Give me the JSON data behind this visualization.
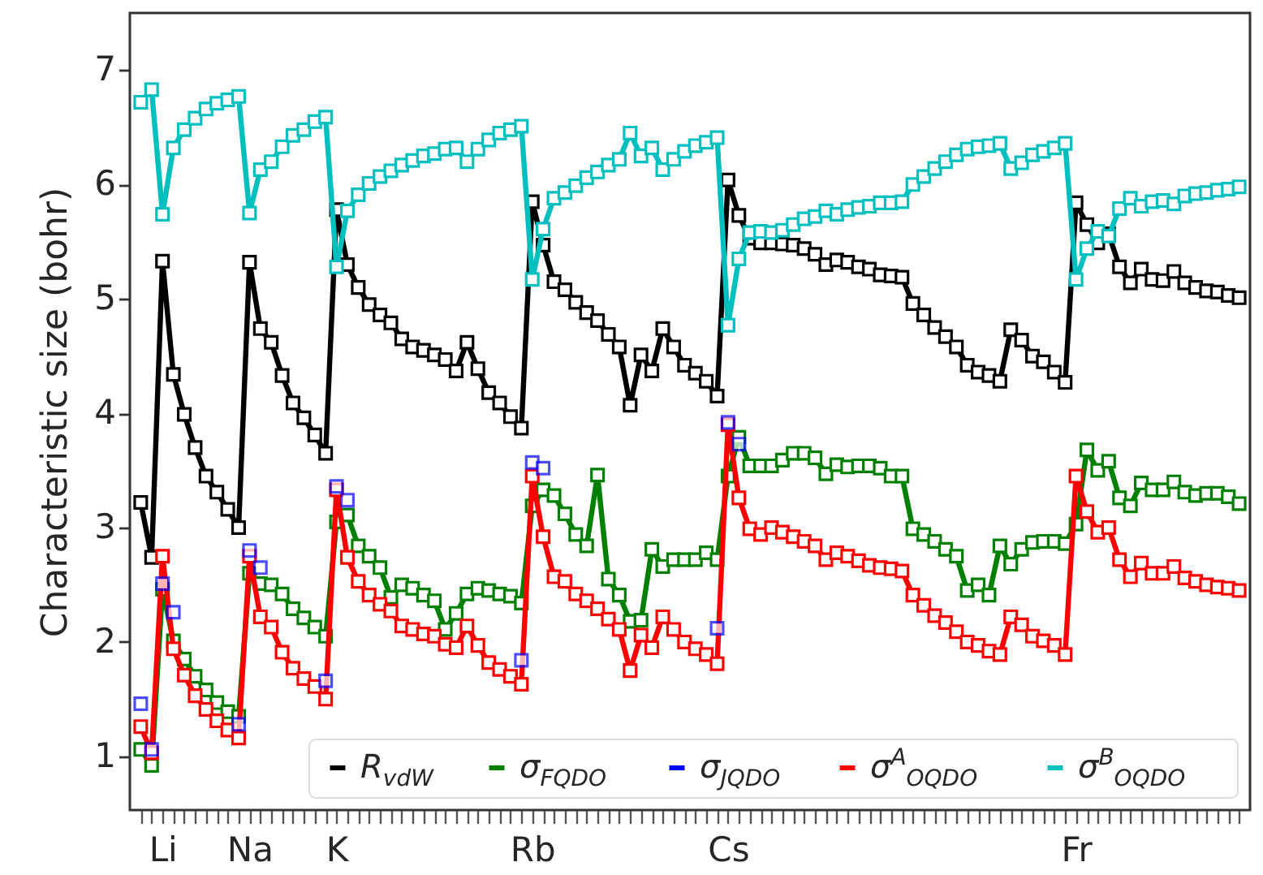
{
  "chart_data": {
    "type": "line",
    "ylabel": "Characteristic size (bohr)",
    "marker": "square",
    "line_style": "solid",
    "legend": "bottom right",
    "categories": [
      null,
      null,
      "Li",
      null,
      null,
      null,
      null,
      null,
      null,
      null,
      "Na",
      null,
      null,
      null,
      null,
      null,
      null,
      null,
      "K",
      null,
      null,
      null,
      null,
      null,
      null,
      null,
      null,
      null,
      null,
      null,
      null,
      null,
      null,
      null,
      null,
      null,
      "Rb",
      null,
      null,
      null,
      null,
      null,
      null,
      null,
      null,
      null,
      null,
      null,
      null,
      null,
      null,
      null,
      null,
      null,
      "Cs",
      null,
      null,
      null,
      null,
      null,
      null,
      null,
      null,
      null,
      null,
      null,
      null,
      null,
      null,
      null,
      null,
      null,
      null,
      null,
      null,
      null,
      null,
      null,
      null,
      null,
      null,
      null,
      null,
      null,
      null,
      null,
      "Fr",
      null,
      null,
      null,
      null,
      null,
      null,
      null,
      null,
      null,
      null,
      null,
      null,
      null,
      null,
      null
    ],
    "ylim": [
      0.53,
      7.5
    ],
    "yticks": [
      1,
      2,
      3,
      4,
      5,
      6,
      7
    ],
    "series": [
      {
        "name": "R$_{vdW}$",
        "color": "#000000",
        "values": [
          3.22,
          2.74,
          5.33,
          4.34,
          3.99,
          3.7,
          3.45,
          3.31,
          3.16,
          3.0,
          5.32,
          4.74,
          4.62,
          4.33,
          4.09,
          3.96,
          3.81,
          3.65,
          5.78,
          5.3,
          5.1,
          4.95,
          4.86,
          4.79,
          4.65,
          4.58,
          4.55,
          4.51,
          4.47,
          4.37,
          4.62,
          4.39,
          4.18,
          4.09,
          3.97,
          3.87,
          5.85,
          5.47,
          5.15,
          5.08,
          4.97,
          4.88,
          4.81,
          4.69,
          4.58,
          4.07,
          4.51,
          4.37,
          4.74,
          4.58,
          4.42,
          4.35,
          4.28,
          4.15,
          6.04,
          5.73,
          5.53,
          5.49,
          5.49,
          5.48,
          5.47,
          5.44,
          5.39,
          5.3,
          5.34,
          5.32,
          5.28,
          5.26,
          5.21,
          5.2,
          5.19,
          4.96,
          4.86,
          4.75,
          4.67,
          4.58,
          4.42,
          4.36,
          4.33,
          4.28,
          4.73,
          4.64,
          4.5,
          4.45,
          4.36,
          4.27,
          5.84,
          5.65,
          5.49,
          5.57,
          5.28,
          5.14,
          5.26,
          5.17,
          5.16,
          5.24,
          5.14,
          5.1,
          5.07,
          5.06,
          5.03,
          5.01
        ]
      },
      {
        "name": "σ$_{FQDO}$",
        "color": "#008000",
        "values": [
          1.06,
          0.92,
          2.46,
          2.01,
          1.85,
          1.7,
          1.58,
          1.47,
          1.39,
          1.35,
          2.6,
          2.51,
          2.5,
          2.42,
          2.29,
          2.21,
          2.13,
          2.05,
          3.05,
          3.11,
          2.84,
          2.75,
          2.65,
          2.39,
          2.5,
          2.47,
          2.41,
          2.36,
          2.11,
          2.25,
          2.42,
          2.47,
          2.45,
          2.42,
          2.4,
          2.34,
          3.19,
          3.33,
          3.28,
          3.12,
          2.94,
          2.84,
          3.46,
          2.55,
          2.41,
          2.18,
          2.19,
          2.81,
          2.66,
          2.72,
          2.72,
          2.72,
          2.78,
          2.72,
          3.45,
          3.79,
          3.54,
          3.54,
          3.54,
          3.59,
          3.65,
          3.65,
          3.61,
          3.47,
          3.55,
          3.53,
          3.54,
          3.54,
          3.52,
          3.45,
          3.45,
          2.99,
          2.94,
          2.88,
          2.81,
          2.75,
          2.45,
          2.5,
          2.41,
          2.84,
          2.68,
          2.81,
          2.87,
          2.88,
          2.88,
          2.86,
          3.03,
          3.68,
          3.5,
          3.58,
          3.26,
          3.19,
          3.39,
          3.33,
          3.33,
          3.4,
          3.31,
          3.28,
          3.3,
          3.3,
          3.27,
          3.21
        ]
      },
      {
        "name": "σ$_{JQDO}$",
        "color": "#0000ff",
        "type": "scatter",
        "values": [
          1.46,
          1.06,
          2.51,
          2.26,
          null,
          null,
          null,
          null,
          null,
          1.28,
          2.8,
          2.65,
          null,
          null,
          null,
          null,
          null,
          1.66,
          3.36,
          3.24,
          null,
          null,
          null,
          null,
          null,
          null,
          null,
          null,
          null,
          null,
          null,
          null,
          null,
          null,
          null,
          1.84,
          3.57,
          3.52,
          null,
          null,
          null,
          null,
          null,
          null,
          null,
          null,
          null,
          null,
          null,
          null,
          null,
          null,
          null,
          2.12,
          3.92,
          3.73,
          null,
          null,
          null,
          null,
          null,
          null,
          null,
          null,
          null,
          null,
          null,
          null,
          null,
          null,
          null,
          null,
          null,
          null,
          null,
          null,
          null,
          null,
          null,
          null,
          null,
          null,
          null,
          null,
          null,
          null,
          null,
          null,
          null,
          null,
          null,
          null,
          null,
          null,
          null,
          null,
          null,
          null,
          null,
          null,
          null,
          null
        ]
      },
      {
        "name": "σ$^{A}$$_{OQDO}$",
        "color": "#ff0000",
        "values": [
          1.26,
          1.03,
          2.75,
          1.94,
          1.71,
          1.53,
          1.41,
          1.31,
          1.23,
          1.16,
          2.75,
          2.22,
          2.13,
          1.91,
          1.77,
          1.68,
          1.61,
          1.5,
          3.33,
          2.74,
          2.53,
          2.41,
          2.33,
          2.27,
          2.14,
          2.11,
          2.07,
          2.05,
          1.98,
          1.95,
          2.14,
          1.97,
          1.82,
          1.76,
          1.7,
          1.63,
          3.45,
          2.92,
          2.57,
          2.53,
          2.42,
          2.36,
          2.29,
          2.2,
          2.11,
          1.75,
          2.06,
          1.95,
          2.22,
          2.11,
          2.0,
          1.94,
          1.89,
          1.81,
          3.9,
          3.26,
          2.99,
          2.94,
          3.0,
          2.96,
          2.92,
          2.88,
          2.84,
          2.72,
          2.78,
          2.75,
          2.71,
          2.67,
          2.65,
          2.64,
          2.62,
          2.41,
          2.32,
          2.23,
          2.17,
          2.09,
          2.0,
          1.97,
          1.92,
          1.89,
          2.22,
          2.15,
          2.05,
          2.01,
          1.97,
          1.89,
          3.45,
          3.14,
          2.96,
          3.0,
          2.72,
          2.57,
          2.69,
          2.6,
          2.6,
          2.66,
          2.56,
          2.53,
          2.5,
          2.48,
          2.47,
          2.45
        ]
      },
      {
        "name": "σ$^{B}$$_{OQDO}$",
        "color": "#00bfbf",
        "values": [
          6.72,
          6.83,
          5.74,
          6.32,
          6.48,
          6.58,
          6.66,
          6.71,
          6.74,
          6.77,
          5.75,
          6.13,
          6.2,
          6.33,
          6.43,
          6.48,
          6.55,
          6.59,
          5.28,
          5.77,
          5.91,
          6.01,
          6.07,
          6.12,
          6.17,
          6.21,
          6.25,
          6.27,
          6.31,
          6.32,
          6.2,
          6.31,
          6.39,
          6.45,
          6.48,
          6.51,
          5.17,
          5.61,
          5.88,
          5.93,
          5.99,
          6.06,
          6.11,
          6.17,
          6.22,
          6.45,
          6.25,
          6.32,
          6.13,
          6.22,
          6.29,
          6.34,
          6.37,
          6.41,
          4.77,
          5.35,
          5.58,
          5.59,
          5.58,
          5.6,
          5.65,
          5.7,
          5.72,
          5.77,
          5.74,
          5.78,
          5.8,
          5.81,
          5.84,
          5.84,
          5.85,
          6.0,
          6.07,
          6.14,
          6.2,
          6.26,
          6.31,
          6.33,
          6.34,
          6.36,
          6.14,
          6.19,
          6.26,
          6.29,
          6.32,
          6.36,
          5.17,
          5.44,
          5.59,
          5.55,
          5.79,
          5.88,
          5.81,
          5.85,
          5.86,
          5.83,
          5.9,
          5.92,
          5.93,
          5.95,
          5.96,
          5.98
        ]
      }
    ]
  }
}
